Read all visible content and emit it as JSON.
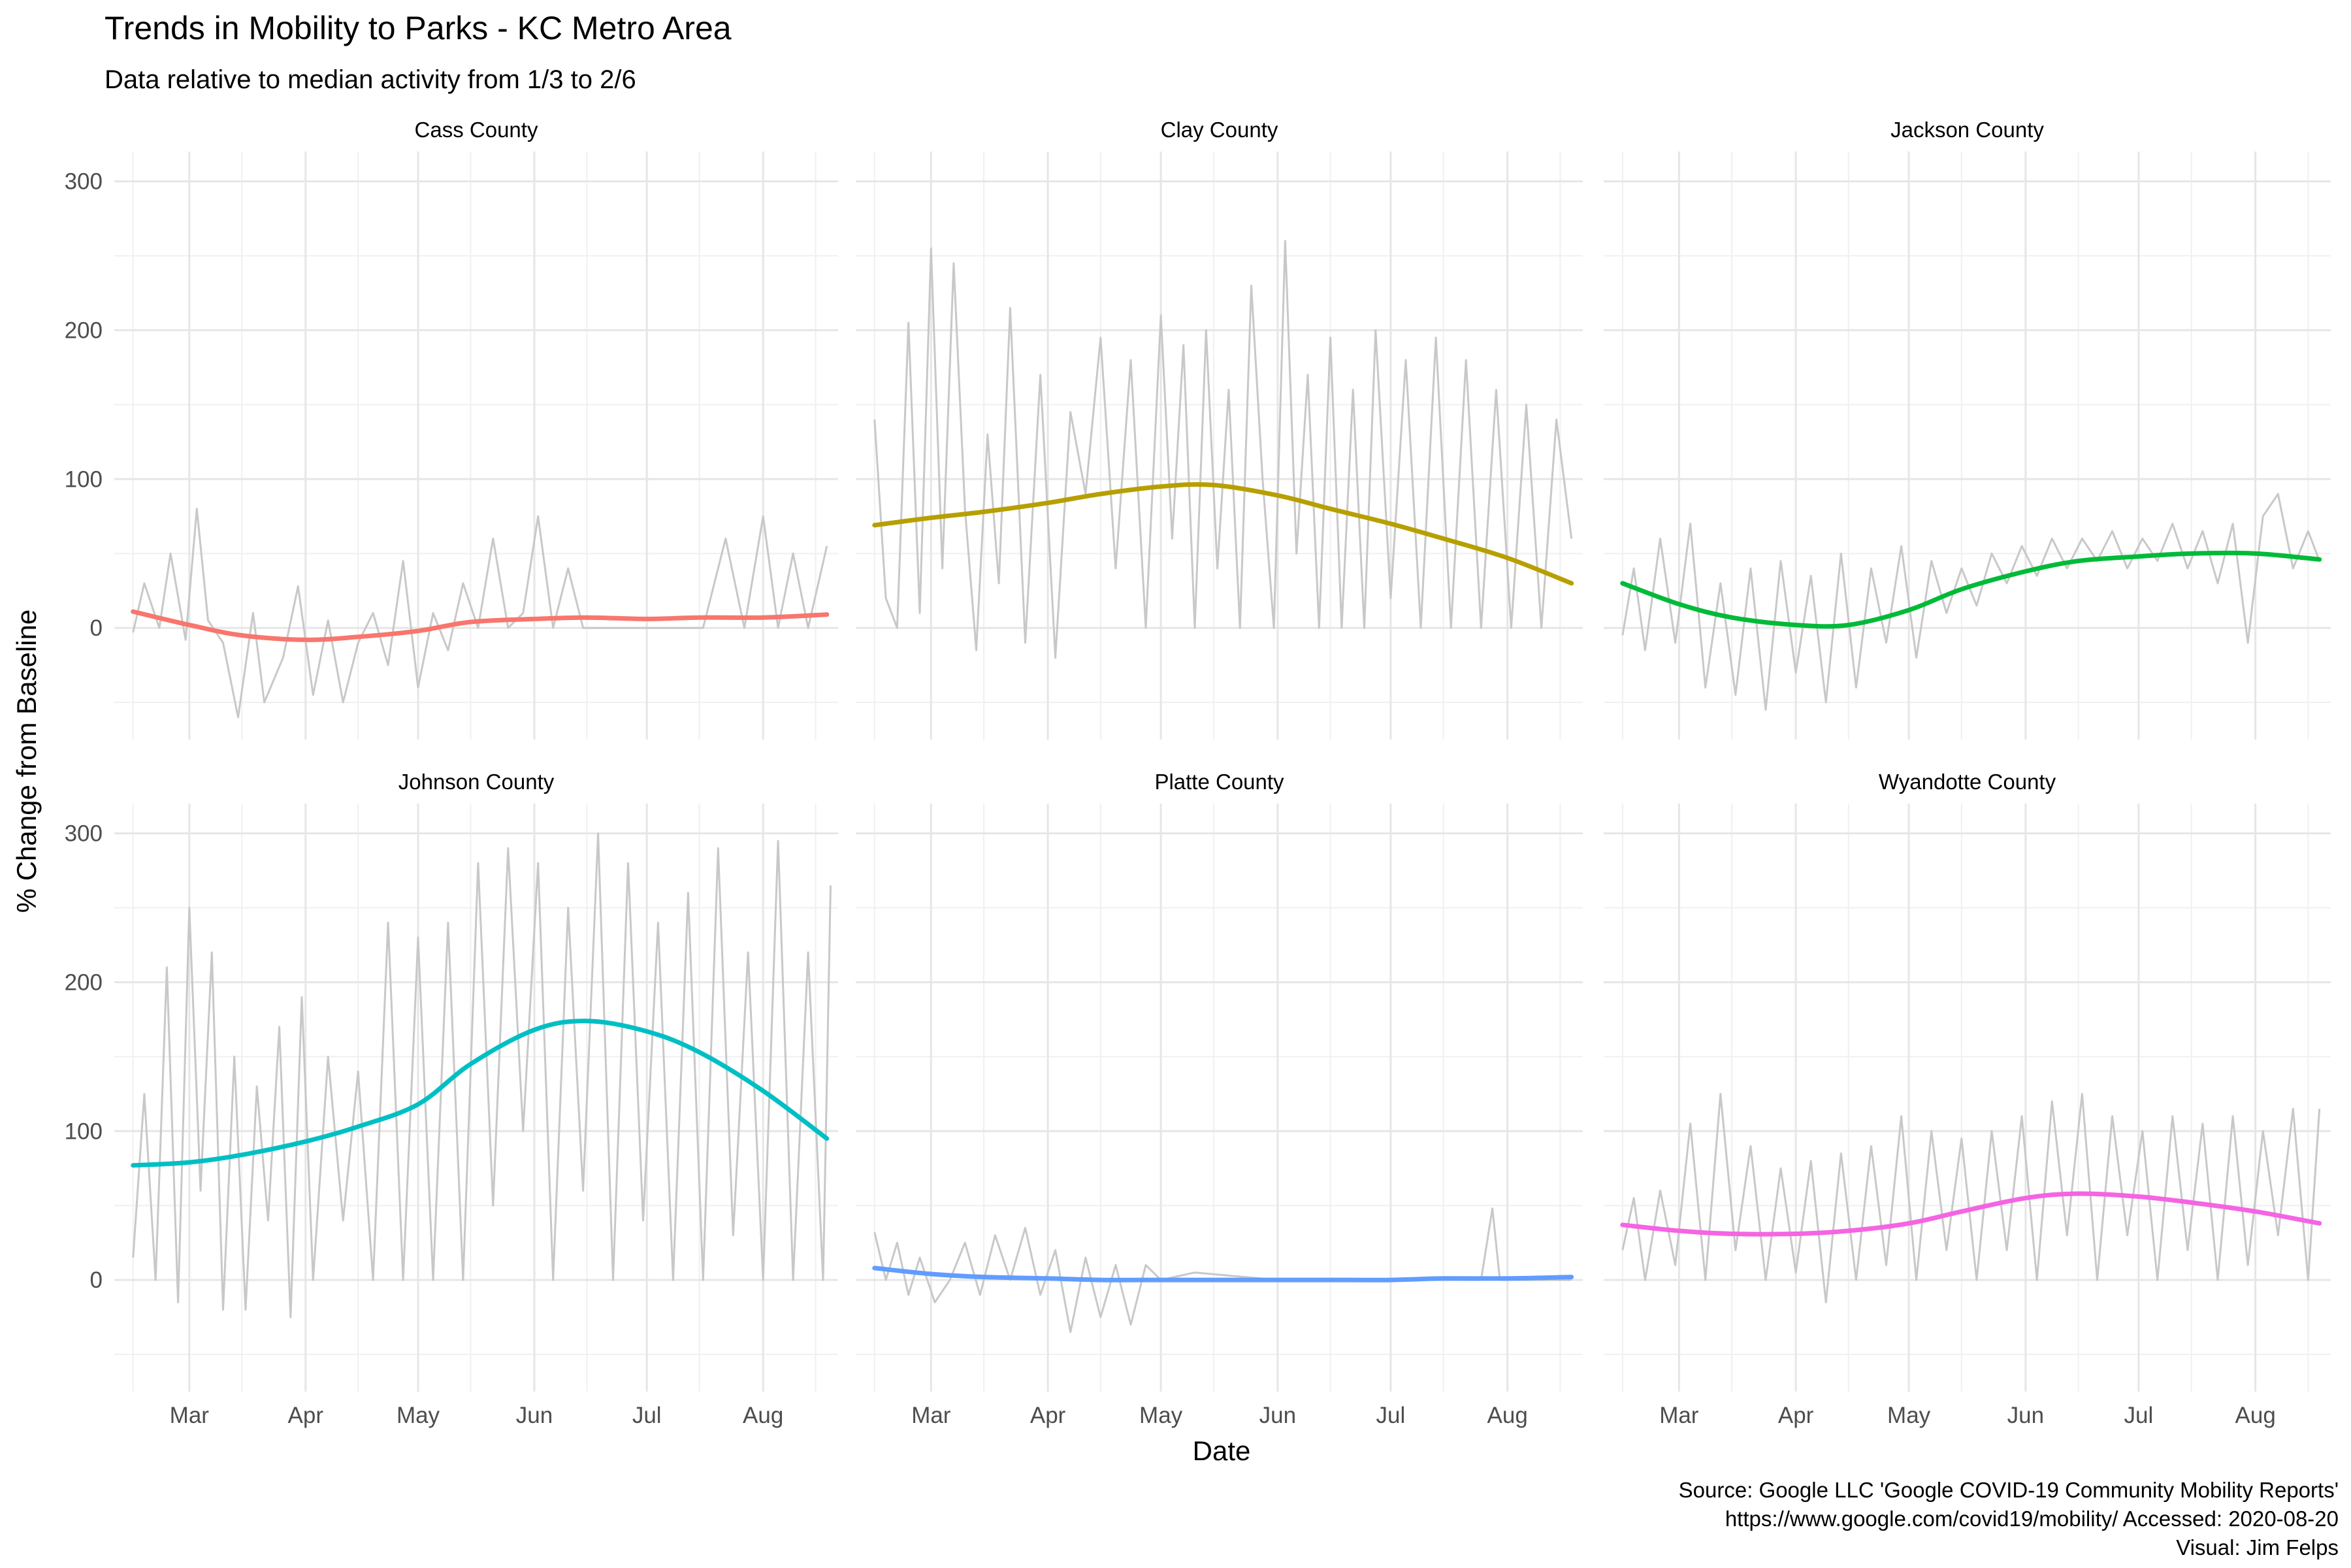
{
  "chart_data": {
    "type": "line",
    "title": "Trends in Mobility to Parks - KC Metro Area",
    "subtitle": "Data relative to median activity from 1/3 to 2/6",
    "xlabel": "Date",
    "ylabel": "% Change from Baseline",
    "caption": [
      "Source: Google LLC 'Google COVID-19 Community Mobility Reports'",
      "https://www.google.com/covid19/mobility/ Accessed: 2020-08-20",
      "Visual: Jim Felps"
    ],
    "x_tick_labels": [
      "Mar",
      "Apr",
      "May",
      "Jun",
      "Jul",
      "Aug"
    ],
    "y_ticks": [
      0,
      100,
      200,
      300
    ],
    "ylim": [
      -75,
      320
    ],
    "xlim": [
      "2020-02-10",
      "2020-08-21"
    ],
    "grid": true,
    "raw_color": "#c8c8c8",
    "panels": [
      {
        "facet": "Cass County",
        "color": "#F8766D",
        "trend": {
          "x": [
            "2020-02-15",
            "2020-03-01",
            "2020-03-15",
            "2020-04-01",
            "2020-04-15",
            "2020-05-01",
            "2020-05-15",
            "2020-06-01",
            "2020-06-15",
            "2020-07-01",
            "2020-07-15",
            "2020-08-01",
            "2020-08-18"
          ],
          "y": [
            11,
            2,
            -5,
            -8,
            -6,
            -2,
            4,
            6,
            7,
            6,
            7,
            7,
            9
          ]
        },
        "raw": {
          "x": [
            "2020-02-15",
            "2020-02-18",
            "2020-02-22",
            "2020-02-25",
            "2020-02-29",
            "2020-03-03",
            "2020-03-06",
            "2020-03-10",
            "2020-03-14",
            "2020-03-18",
            "2020-03-21",
            "2020-03-26",
            "2020-03-30",
            "2020-04-03",
            "2020-04-07",
            "2020-04-11",
            "2020-04-15",
            "2020-04-19",
            "2020-04-23",
            "2020-04-27",
            "2020-05-01",
            "2020-05-05",
            "2020-05-09",
            "2020-05-13",
            "2020-05-17",
            "2020-05-21",
            "2020-05-25",
            "2020-05-29",
            "2020-06-02",
            "2020-06-06",
            "2020-06-10",
            "2020-06-14",
            "2020-06-18",
            "2020-06-22",
            "2020-06-26",
            "2020-06-30",
            "2020-07-04",
            "2020-07-10",
            "2020-07-16",
            "2020-07-22",
            "2020-07-27",
            "2020-08-01",
            "2020-08-05",
            "2020-08-09",
            "2020-08-13",
            "2020-08-18"
          ],
          "y": [
            -3,
            30,
            0,
            50,
            -8,
            80,
            5,
            -10,
            -60,
            10,
            -50,
            -20,
            28,
            -45,
            5,
            -50,
            -10,
            10,
            -25,
            45,
            -40,
            10,
            -15,
            30,
            0,
            60,
            0,
            10,
            75,
            0,
            40,
            0,
            0,
            0,
            0,
            0,
            0,
            0,
            0,
            60,
            0,
            75,
            0,
            50,
            0,
            55
          ]
        }
      },
      {
        "facet": "Clay County",
        "color": "#B79F00",
        "trend": {
          "x": [
            "2020-02-15",
            "2020-03-01",
            "2020-03-15",
            "2020-04-01",
            "2020-04-15",
            "2020-05-01",
            "2020-05-15",
            "2020-06-01",
            "2020-06-15",
            "2020-07-01",
            "2020-07-15",
            "2020-08-01",
            "2020-08-18"
          ],
          "y": [
            69,
            74,
            78,
            84,
            90,
            95,
            96,
            89,
            80,
            70,
            60,
            47,
            30
          ]
        },
        "raw": {
          "x": [
            "2020-02-15",
            "2020-02-18",
            "2020-02-21",
            "2020-02-24",
            "2020-02-27",
            "2020-03-01",
            "2020-03-04",
            "2020-03-07",
            "2020-03-10",
            "2020-03-13",
            "2020-03-16",
            "2020-03-19",
            "2020-03-22",
            "2020-03-26",
            "2020-03-30",
            "2020-04-03",
            "2020-04-07",
            "2020-04-11",
            "2020-04-15",
            "2020-04-19",
            "2020-04-23",
            "2020-04-27",
            "2020-05-01",
            "2020-05-04",
            "2020-05-07",
            "2020-05-10",
            "2020-05-13",
            "2020-05-16",
            "2020-05-19",
            "2020-05-22",
            "2020-05-25",
            "2020-05-28",
            "2020-05-31",
            "2020-06-03",
            "2020-06-06",
            "2020-06-09",
            "2020-06-12",
            "2020-06-15",
            "2020-06-18",
            "2020-06-21",
            "2020-06-24",
            "2020-06-27",
            "2020-07-01",
            "2020-07-05",
            "2020-07-09",
            "2020-07-13",
            "2020-07-17",
            "2020-07-21",
            "2020-07-25",
            "2020-07-29",
            "2020-08-02",
            "2020-08-06",
            "2020-08-10",
            "2020-08-14",
            "2020-08-18"
          ],
          "y": [
            140,
            20,
            0,
            205,
            10,
            255,
            40,
            245,
            80,
            -15,
            130,
            30,
            215,
            -10,
            170,
            -20,
            145,
            90,
            195,
            40,
            180,
            0,
            210,
            60,
            190,
            0,
            200,
            40,
            160,
            0,
            230,
            100,
            0,
            260,
            50,
            170,
            0,
            195,
            0,
            160,
            0,
            200,
            20,
            180,
            0,
            195,
            0,
            180,
            0,
            160,
            0,
            150,
            0,
            140,
            60
          ]
        }
      },
      {
        "facet": "Jackson County",
        "color": "#00BA38",
        "trend": {
          "x": [
            "2020-02-15",
            "2020-03-01",
            "2020-03-15",
            "2020-04-01",
            "2020-04-15",
            "2020-05-01",
            "2020-05-15",
            "2020-06-01",
            "2020-06-15",
            "2020-07-01",
            "2020-07-15",
            "2020-08-01",
            "2020-08-18"
          ],
          "y": [
            30,
            16,
            7,
            2,
            2,
            12,
            26,
            38,
            45,
            48,
            50,
            50,
            46
          ]
        },
        "raw": {
          "x": [
            "2020-02-15",
            "2020-02-18",
            "2020-02-21",
            "2020-02-25",
            "2020-02-29",
            "2020-03-04",
            "2020-03-08",
            "2020-03-12",
            "2020-03-16",
            "2020-03-20",
            "2020-03-24",
            "2020-03-28",
            "2020-04-01",
            "2020-04-05",
            "2020-04-09",
            "2020-04-13",
            "2020-04-17",
            "2020-04-21",
            "2020-04-25",
            "2020-04-29",
            "2020-05-03",
            "2020-05-07",
            "2020-05-11",
            "2020-05-15",
            "2020-05-19",
            "2020-05-23",
            "2020-05-27",
            "2020-05-31",
            "2020-06-04",
            "2020-06-08",
            "2020-06-12",
            "2020-06-16",
            "2020-06-20",
            "2020-06-24",
            "2020-06-28",
            "2020-07-02",
            "2020-07-06",
            "2020-07-10",
            "2020-07-14",
            "2020-07-18",
            "2020-07-22",
            "2020-07-26",
            "2020-07-30",
            "2020-08-03",
            "2020-08-07",
            "2020-08-11",
            "2020-08-15",
            "2020-08-18"
          ],
          "y": [
            -5,
            40,
            -15,
            60,
            -10,
            70,
            -40,
            30,
            -45,
            40,
            -55,
            45,
            -30,
            35,
            -50,
            50,
            -40,
            40,
            -10,
            55,
            -20,
            45,
            10,
            40,
            15,
            50,
            30,
            55,
            35,
            60,
            40,
            60,
            45,
            65,
            40,
            60,
            45,
            70,
            40,
            65,
            30,
            70,
            -10,
            75,
            90,
            40,
            65,
            45
          ]
        }
      },
      {
        "facet": "Johnson County",
        "color": "#00BFC4",
        "trend": {
          "x": [
            "2020-02-15",
            "2020-03-01",
            "2020-03-15",
            "2020-04-01",
            "2020-04-15",
            "2020-05-01",
            "2020-05-15",
            "2020-06-01",
            "2020-06-15",
            "2020-07-01",
            "2020-07-15",
            "2020-08-01",
            "2020-08-18"
          ],
          "y": [
            77,
            79,
            84,
            93,
            103,
            118,
            145,
            168,
            174,
            167,
            153,
            127,
            95
          ]
        },
        "raw": {
          "x": [
            "2020-02-15",
            "2020-02-18",
            "2020-02-21",
            "2020-02-24",
            "2020-02-27",
            "2020-03-01",
            "2020-03-04",
            "2020-03-07",
            "2020-03-10",
            "2020-03-13",
            "2020-03-16",
            "2020-03-19",
            "2020-03-22",
            "2020-03-25",
            "2020-03-28",
            "2020-03-31",
            "2020-04-03",
            "2020-04-07",
            "2020-04-11",
            "2020-04-15",
            "2020-04-19",
            "2020-04-23",
            "2020-04-27",
            "2020-05-01",
            "2020-05-05",
            "2020-05-09",
            "2020-05-13",
            "2020-05-17",
            "2020-05-21",
            "2020-05-25",
            "2020-05-29",
            "2020-06-02",
            "2020-06-06",
            "2020-06-10",
            "2020-06-14",
            "2020-06-18",
            "2020-06-22",
            "2020-06-26",
            "2020-06-30",
            "2020-07-04",
            "2020-07-08",
            "2020-07-12",
            "2020-07-16",
            "2020-07-20",
            "2020-07-24",
            "2020-07-28",
            "2020-08-01",
            "2020-08-05",
            "2020-08-09",
            "2020-08-13",
            "2020-08-17",
            "2020-08-19"
          ],
          "y": [
            15,
            125,
            0,
            210,
            -15,
            250,
            60,
            220,
            -20,
            150,
            -20,
            130,
            40,
            170,
            -25,
            190,
            0,
            150,
            40,
            140,
            0,
            240,
            0,
            230,
            0,
            240,
            0,
            280,
            50,
            290,
            100,
            280,
            0,
            250,
            60,
            300,
            0,
            280,
            40,
            240,
            0,
            260,
            0,
            290,
            30,
            220,
            0,
            295,
            0,
            220,
            0,
            265
          ]
        }
      },
      {
        "facet": "Platte County",
        "color": "#619CFF",
        "trend": {
          "x": [
            "2020-02-15",
            "2020-03-01",
            "2020-03-15",
            "2020-04-01",
            "2020-04-15",
            "2020-05-01",
            "2020-05-15",
            "2020-06-01",
            "2020-06-15",
            "2020-07-01",
            "2020-07-15",
            "2020-08-01",
            "2020-08-18"
          ],
          "y": [
            8,
            4,
            2,
            1,
            0,
            0,
            0,
            0,
            0,
            0,
            1,
            1,
            2
          ]
        },
        "raw": {
          "x": [
            "2020-02-15",
            "2020-02-18",
            "2020-02-21",
            "2020-02-24",
            "2020-02-27",
            "2020-03-02",
            "2020-03-06",
            "2020-03-10",
            "2020-03-14",
            "2020-03-18",
            "2020-03-22",
            "2020-03-26",
            "2020-03-30",
            "2020-04-03",
            "2020-04-07",
            "2020-04-11",
            "2020-04-15",
            "2020-04-19",
            "2020-04-23",
            "2020-04-27",
            "2020-05-01",
            "2020-05-10",
            "2020-06-01",
            "2020-07-01",
            "2020-07-25",
            "2020-07-28",
            "2020-07-30",
            "2020-08-18"
          ],
          "y": [
            32,
            0,
            25,
            -10,
            15,
            -15,
            0,
            25,
            -10,
            30,
            0,
            35,
            -10,
            20,
            -35,
            15,
            -25,
            10,
            -30,
            10,
            0,
            5,
            0,
            0,
            0,
            48,
            0,
            0
          ]
        }
      },
      {
        "facet": "Wyandotte County",
        "color": "#F564E3",
        "trend": {
          "x": [
            "2020-02-15",
            "2020-03-01",
            "2020-03-15",
            "2020-04-01",
            "2020-04-15",
            "2020-05-01",
            "2020-05-15",
            "2020-06-01",
            "2020-06-15",
            "2020-07-01",
            "2020-07-15",
            "2020-08-01",
            "2020-08-18"
          ],
          "y": [
            37,
            33,
            31,
            31,
            33,
            38,
            46,
            55,
            58,
            56,
            52,
            46,
            38
          ]
        },
        "raw": {
          "x": [
            "2020-02-15",
            "2020-02-18",
            "2020-02-21",
            "2020-02-25",
            "2020-02-29",
            "2020-03-04",
            "2020-03-08",
            "2020-03-12",
            "2020-03-16",
            "2020-03-20",
            "2020-03-24",
            "2020-03-28",
            "2020-04-01",
            "2020-04-05",
            "2020-04-09",
            "2020-04-13",
            "2020-04-17",
            "2020-04-21",
            "2020-04-25",
            "2020-04-29",
            "2020-05-03",
            "2020-05-07",
            "2020-05-11",
            "2020-05-15",
            "2020-05-19",
            "2020-05-23",
            "2020-05-27",
            "2020-05-31",
            "2020-06-04",
            "2020-06-08",
            "2020-06-12",
            "2020-06-16",
            "2020-06-20",
            "2020-06-24",
            "2020-06-28",
            "2020-07-02",
            "2020-07-06",
            "2020-07-10",
            "2020-07-14",
            "2020-07-18",
            "2020-07-22",
            "2020-07-26",
            "2020-07-30",
            "2020-08-03",
            "2020-08-07",
            "2020-08-11",
            "2020-08-15",
            "2020-08-18"
          ],
          "y": [
            20,
            55,
            0,
            60,
            10,
            105,
            0,
            125,
            20,
            90,
            0,
            75,
            5,
            80,
            -15,
            85,
            0,
            90,
            10,
            110,
            0,
            100,
            20,
            95,
            0,
            100,
            20,
            110,
            0,
            120,
            30,
            125,
            0,
            110,
            30,
            100,
            0,
            110,
            20,
            105,
            0,
            110,
            10,
            100,
            30,
            115,
            0,
            115
          ]
        }
      }
    ]
  }
}
